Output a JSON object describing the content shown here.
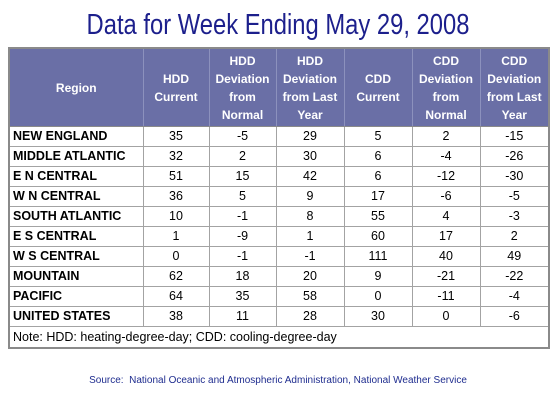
{
  "chart_data": {
    "type": "table",
    "title": "Data for Week Ending May 29, 2008",
    "columns": [
      "Region",
      "HDD Current",
      "HDD Deviation from Normal",
      "HDD Deviation from Last Year",
      "CDD Current",
      "CDD Deviation from Normal",
      "CDD Deviation from Last Year"
    ],
    "rows": [
      {
        "region": "NEW ENGLAND",
        "values": [
          35,
          -5,
          29,
          5,
          2,
          -15
        ]
      },
      {
        "region": "MIDDLE ATLANTIC",
        "values": [
          32,
          2,
          30,
          6,
          -4,
          -26
        ]
      },
      {
        "region": "E N CENTRAL",
        "values": [
          51,
          15,
          42,
          6,
          -12,
          -30
        ]
      },
      {
        "region": "W N CENTRAL",
        "values": [
          36,
          5,
          9,
          17,
          -6,
          -5
        ]
      },
      {
        "region": "SOUTH ATLANTIC",
        "values": [
          10,
          -1,
          8,
          55,
          4,
          -3
        ]
      },
      {
        "region": "E S CENTRAL",
        "values": [
          1,
          -9,
          1,
          60,
          17,
          2
        ]
      },
      {
        "region": "W S CENTRAL",
        "values": [
          0,
          -1,
          -1,
          111,
          40,
          49
        ]
      },
      {
        "region": "MOUNTAIN",
        "values": [
          62,
          18,
          20,
          9,
          -21,
          -22
        ]
      },
      {
        "region": "PACIFIC",
        "values": [
          64,
          35,
          58,
          0,
          -11,
          -4
        ]
      },
      {
        "region": "UNITED STATES",
        "values": [
          38,
          11,
          28,
          30,
          0,
          -6
        ]
      }
    ],
    "note": "Note: HDD: heating-degree-day; CDD: cooling-degree-day"
  },
  "source": "Source:  National Oceanic and Atmospheric Administration, National Weather Service",
  "colors": {
    "title": "#1c1f8c",
    "header_background": "#6a6fa6",
    "header_text": "#ffffff",
    "source": "#1f2d8f"
  }
}
